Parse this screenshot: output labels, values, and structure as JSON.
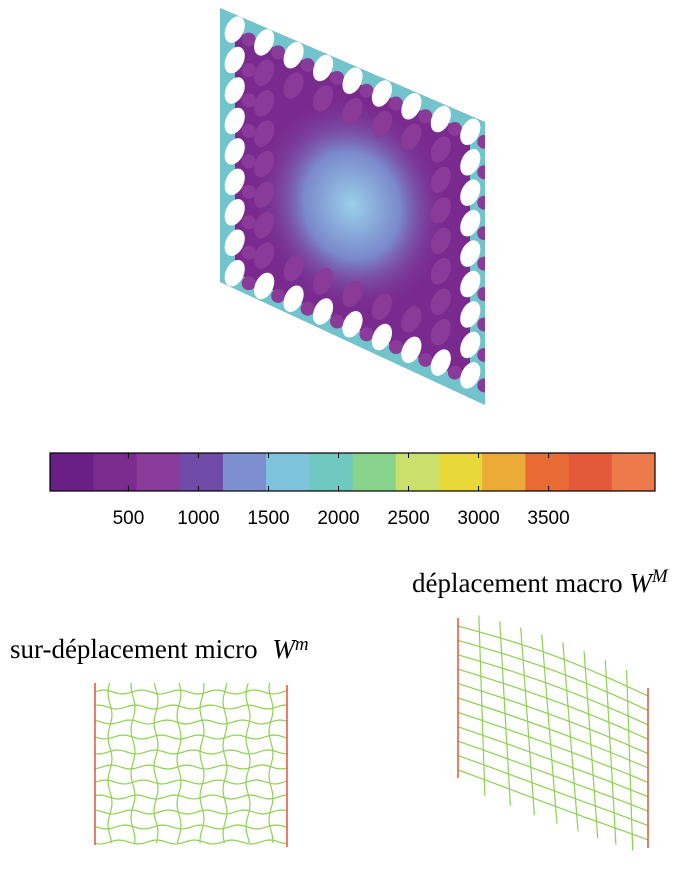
{
  "colorbar": {
    "clim": [
      -60,
      4260
    ],
    "ticks": [
      500,
      1000,
      1500,
      2000,
      2500,
      3000,
      3500
    ],
    "colors": [
      "#6a1f86",
      "#7b2a8e",
      "#8a3a98",
      "#6f4aa6",
      "#7d8fd0",
      "#7ec4dc",
      "#6fc9c0",
      "#88d48c",
      "#c9e06a",
      "#e8d83a",
      "#ecaa36",
      "#e86a34",
      "#e25a3a",
      "#ec7a4a"
    ]
  },
  "macro_label": {
    "text": "déplacement macro",
    "symbol": "W",
    "superscript": "M"
  },
  "micro_label": {
    "text": "sur-déplacement micro",
    "symbol": "W",
    "superscript": "m"
  }
}
